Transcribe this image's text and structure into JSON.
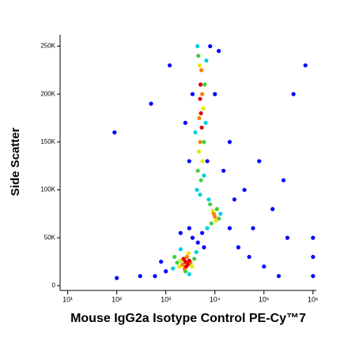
{
  "chart_data": {
    "type": "scatter",
    "x_label": "Mouse IgG2a Isotype Control PE-Cy™7",
    "y_label": "Side Scatter",
    "xscale": "log",
    "xlim": [
      7,
      1170000
    ],
    "ylim": [
      -5000,
      262000
    ],
    "xticks": [
      {
        "value": 10,
        "label": "10¹"
      },
      {
        "value": 100,
        "label": "10²"
      },
      {
        "value": 1000,
        "label": "10³"
      },
      {
        "value": 10000,
        "label": "10⁴"
      },
      {
        "value": 100000,
        "label": "10⁵"
      },
      {
        "value": 1000000,
        "label": "10⁶"
      }
    ],
    "yticks": [
      0,
      {
        "value": 50000,
        "label": "50K"
      },
      {
        "value": 100000,
        "label": "100K"
      },
      {
        "value": 150000,
        "label": "150K"
      },
      {
        "value": 200000,
        "label": "200K"
      },
      {
        "value": 250000,
        "label": "250K"
      }
    ],
    "series": [
      {
        "color": "#0000ff",
        "x": [
          1000,
          800,
          600,
          4500,
          6000,
          5500,
          3500,
          20000,
          30000,
          50000,
          100000,
          200000,
          300000,
          40000,
          20000,
          80000,
          150000,
          400000,
          700000,
          1000000,
          1000000,
          1000000,
          10000,
          15000,
          3000,
          2500,
          300,
          100,
          500,
          90,
          1200,
          8000,
          12000,
          25000,
          60000,
          250000,
          3000,
          2000,
          7000,
          3500
        ],
        "values": [
          15000,
          25000,
          10000,
          45000,
          40000,
          55000,
          50000,
          60000,
          40000,
          30000,
          20000,
          10000,
          50000,
          100000,
          150000,
          130000,
          80000,
          200000,
          230000,
          10000,
          30000,
          50000,
          200000,
          120000,
          130000,
          170000,
          10000,
          8000,
          190000,
          160000,
          230000,
          250000,
          245000,
          90000,
          60000,
          110000,
          60000,
          55000,
          130000,
          200000
        ]
      },
      {
        "color": "#00d0e0",
        "x": [
          1400,
          4200,
          2000,
          3000,
          4300,
          6500,
          4400,
          6700,
          5000,
          7000,
          13000,
          7500,
          4000,
          6000
        ],
        "values": [
          18000,
          35000,
          38000,
          12000,
          100000,
          170000,
          250000,
          235000,
          95000,
          60000,
          75000,
          90000,
          160000,
          115000
        ]
      },
      {
        "color": "#40d040",
        "x": [
          1700,
          3800,
          2500,
          4500,
          6000,
          4600,
          6200,
          5200,
          11000,
          8500,
          12000,
          8000,
          1500
        ],
        "values": [
          24000,
          28000,
          15000,
          120000,
          150000,
          240000,
          210000,
          110000,
          80000,
          65000,
          70000,
          85000,
          30000
        ]
      },
      {
        "color": "#e8e800",
        "x": [
          2000,
          3400,
          2900,
          4700,
          5800,
          4900,
          5600,
          10500,
          9000,
          1900
        ],
        "values": [
          26000,
          20000,
          34000,
          140000,
          185000,
          230000,
          130000,
          68000,
          78000,
          20000
        ]
      },
      {
        "color": "#ff8000",
        "x": [
          2200,
          3200,
          2700,
          2400,
          5000,
          5500,
          4800,
          5300,
          10000,
          9500
        ],
        "values": [
          22000,
          24000,
          30000,
          18000,
          150000,
          200000,
          175000,
          225000,
          72000,
          75000
        ]
      },
      {
        "color": "#e00000",
        "x": [
          2500,
          2800,
          2300,
          3000,
          2600,
          5200,
          5000,
          5400,
          5100
        ],
        "values": [
          25000,
          22000,
          28000,
          26000,
          20000,
          180000,
          195000,
          165000,
          210000
        ]
      }
    ]
  }
}
